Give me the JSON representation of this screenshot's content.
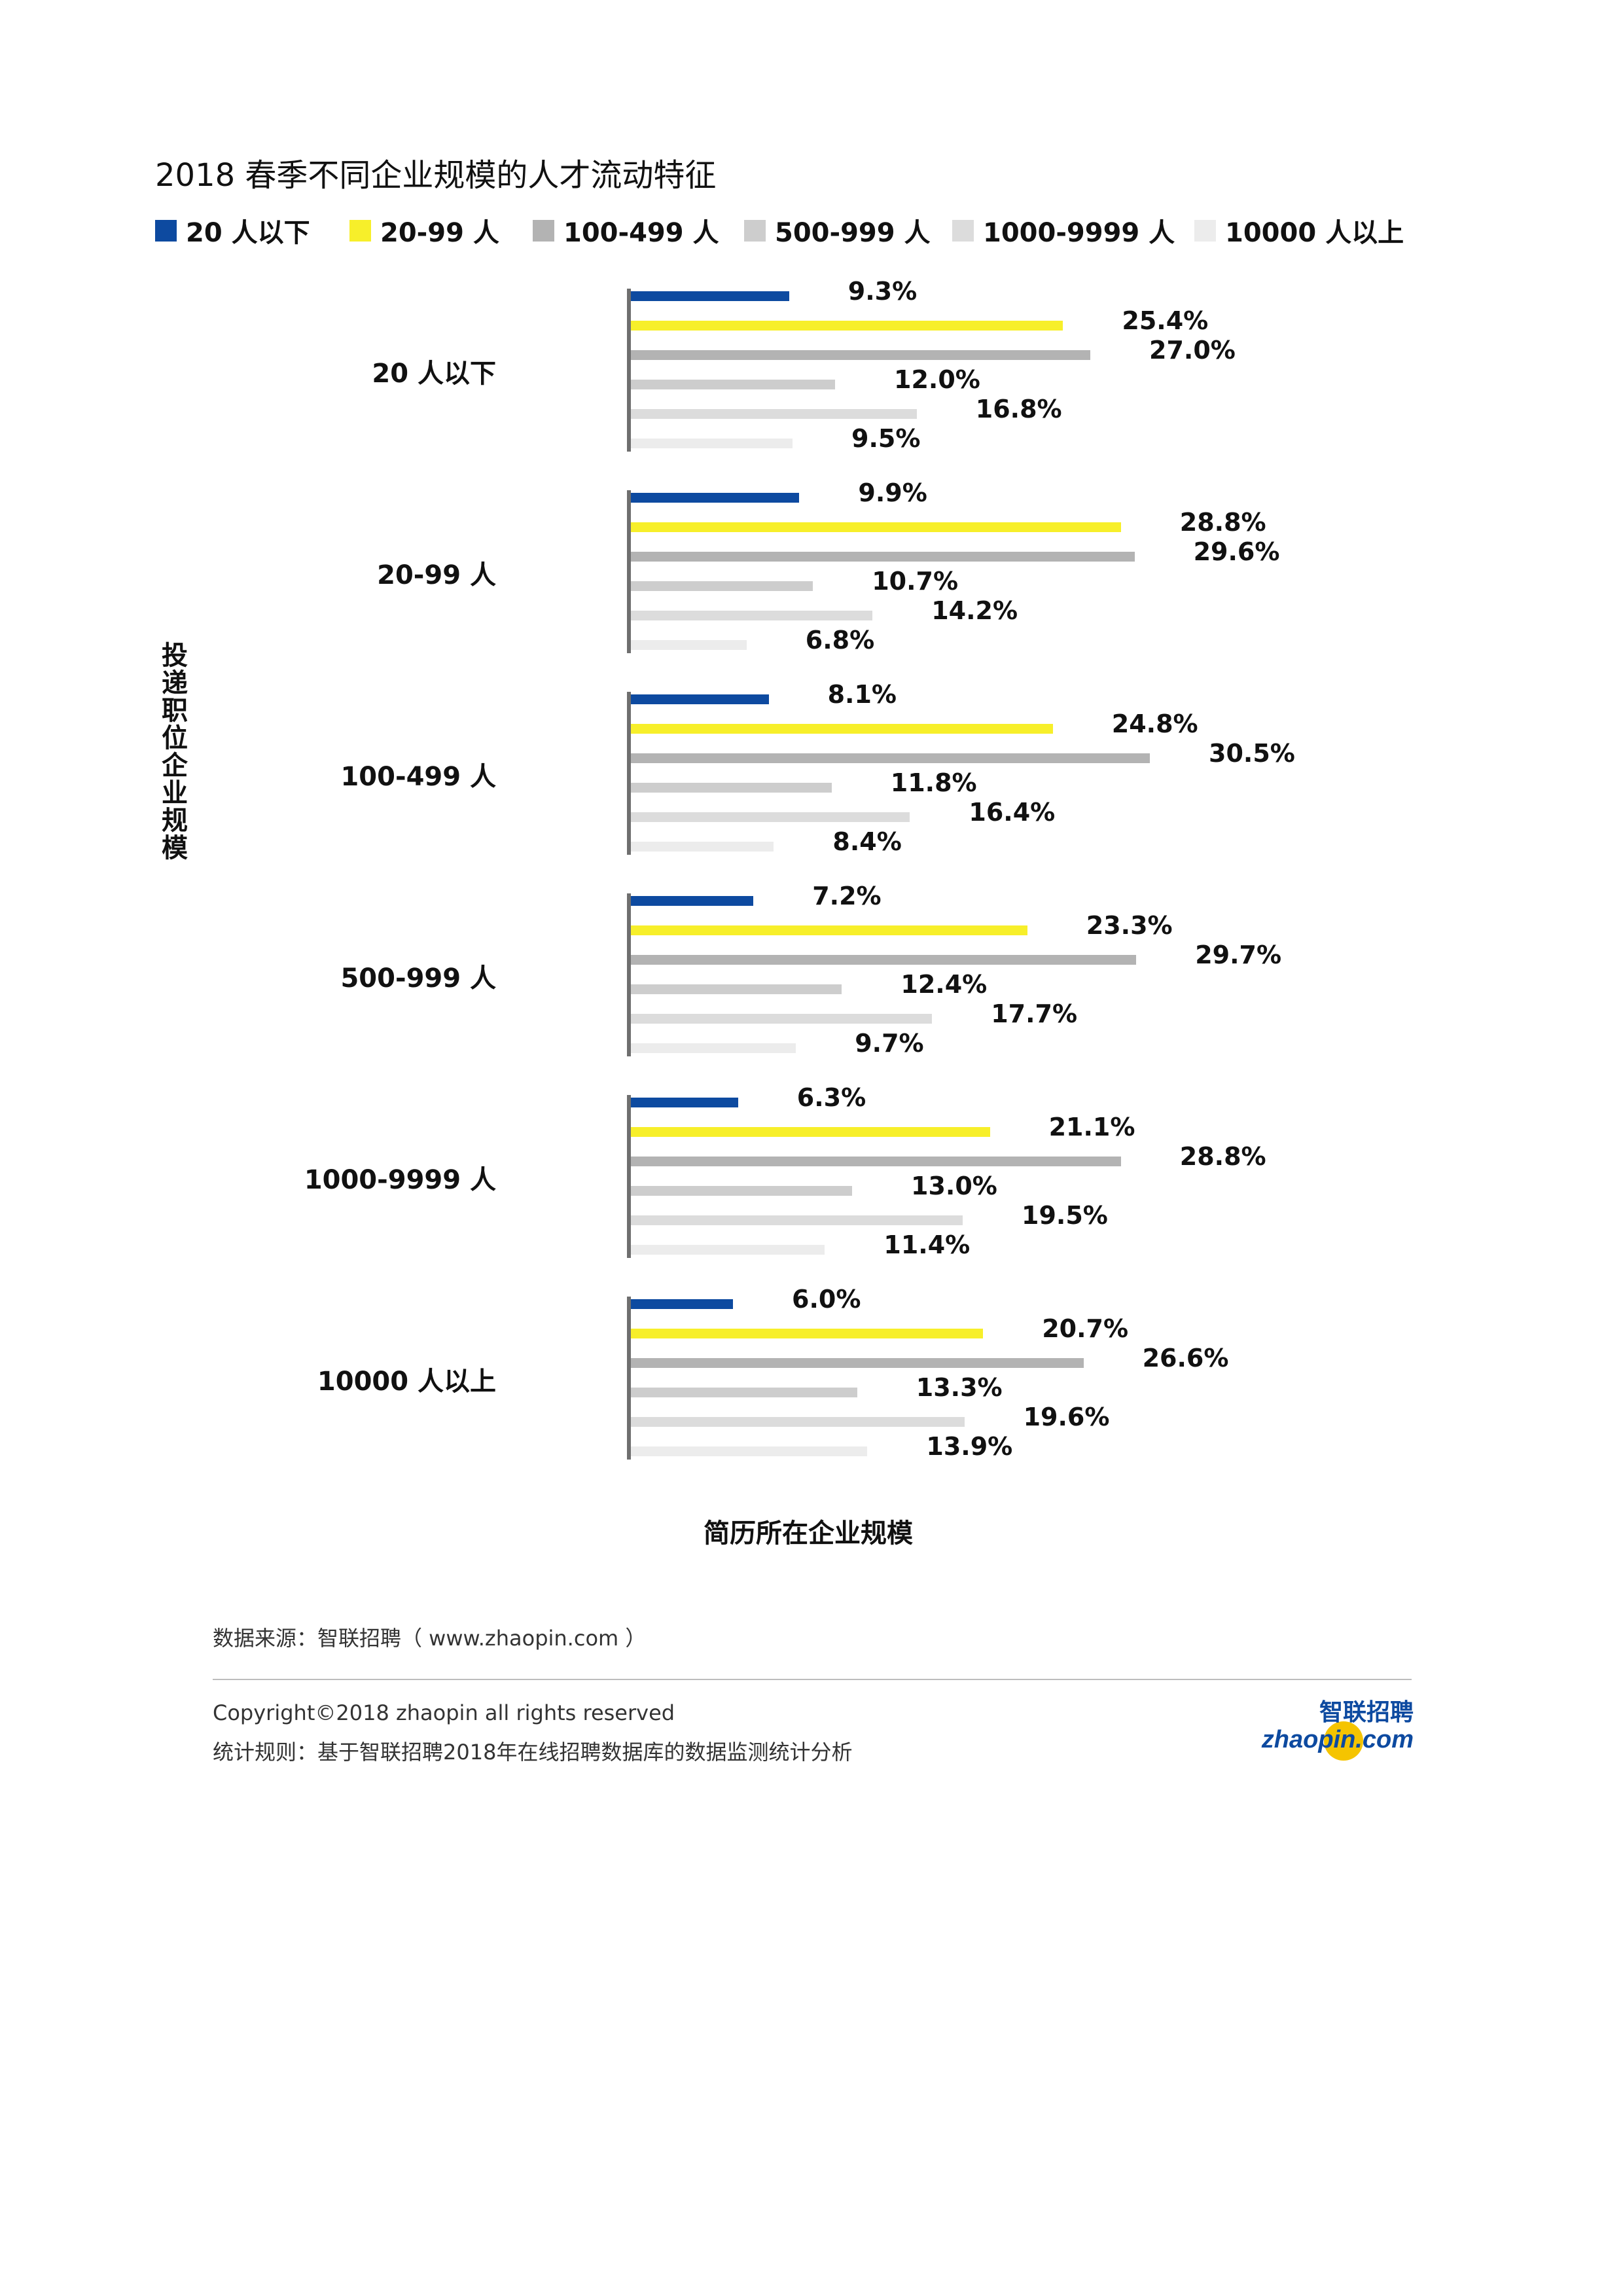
{
  "title": "2018 春季不同企业规模的人才流动特征",
  "legend": [
    {
      "label": "20 人以下",
      "color": "#0d4aa0"
    },
    {
      "label": "20-99 人",
      "color": "#f7ef2a"
    },
    {
      "label": "100-499 人",
      "color": "#b3b3b3"
    },
    {
      "label": "500-999 人",
      "color": "#cdcdcd"
    },
    {
      "label": "1000-9999 人",
      "color": "#dcdcdc"
    },
    {
      "label": "10000 人以上",
      "color": "#ececec"
    }
  ],
  "chart_data": {
    "type": "bar",
    "orientation": "horizontal",
    "title": "2018 春季不同企业规模的人才流动特征",
    "xlabel": "简历所在企业规模",
    "ylabel": "投递职位企业规模",
    "categories": [
      "20 人以下",
      "20-99 人",
      "100-499 人",
      "500-999 人",
      "1000-9999 人",
      "10000 人以上"
    ],
    "unit": "%",
    "series": [
      {
        "name": "20 人以下",
        "color": "#0d4aa0",
        "values": [
          9.3,
          9.9,
          8.1,
          7.2,
          6.3,
          6.0
        ]
      },
      {
        "name": "20-99 人",
        "color": "#f7ef2a",
        "values": [
          25.4,
          28.8,
          24.8,
          23.3,
          21.1,
          20.7
        ]
      },
      {
        "name": "100-499 人",
        "color": "#b3b3b3",
        "values": [
          27.0,
          29.6,
          30.5,
          29.7,
          28.8,
          26.6
        ]
      },
      {
        "name": "500-999 人",
        "color": "#cdcdcd",
        "values": [
          12.0,
          10.7,
          11.8,
          12.4,
          13.0,
          13.3
        ]
      },
      {
        "name": "1000-9999 人",
        "color": "#dcdcdc",
        "values": [
          16.8,
          14.2,
          16.4,
          17.7,
          19.5,
          19.6
        ]
      },
      {
        "name": "10000 人以上",
        "color": "#ececec",
        "values": [
          9.5,
          6.8,
          8.4,
          9.7,
          11.4,
          13.9
        ]
      }
    ],
    "value_labels": [
      [
        "9.3%",
        "25.4%",
        "27.0%",
        "12.0%",
        "16.8%",
        "9.5%"
      ],
      [
        "9.9%",
        "28.8%",
        "29.6%",
        "10.7%",
        "14.2%",
        "6.8%"
      ],
      [
        "8.1%",
        "24.8%",
        "30.5%",
        "11.8%",
        "16.4%",
        "8.4%"
      ],
      [
        "7.2%",
        "23.3%",
        "29.7%",
        "12.4%",
        "17.7%",
        "9.7%"
      ],
      [
        "6.3%",
        "21.1%",
        "28.8%",
        "13.0%",
        "19.5%",
        "11.4%"
      ],
      [
        "6.0%",
        "20.7%",
        "26.6%",
        "13.3%",
        "19.6%",
        "13.9%"
      ]
    ],
    "legend_position": "top",
    "grid": false
  },
  "footer": {
    "source": "数据来源：智联招聘（ www.zhaopin.com ）",
    "copyright": "Copyright©2018 zhaopin all rights reserved",
    "stats_rule": "统计规则：基于智联招聘2018年在线招聘数据库的数据监测统计分析",
    "logo_cn": "智联招聘",
    "logo_en": "zhaopin.com"
  }
}
